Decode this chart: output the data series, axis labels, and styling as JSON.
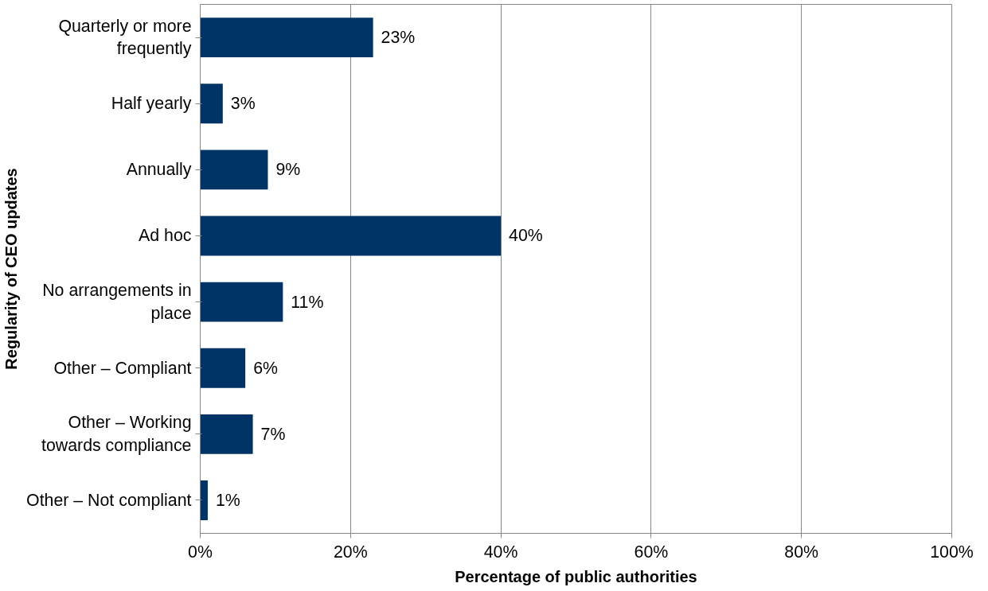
{
  "chart_data": {
    "type": "bar",
    "orientation": "horizontal",
    "xlabel": "Percentage of public authorities",
    "ylabel": "Regularity of CEO updates",
    "categories": [
      "Quarterly or more frequently",
      "Half yearly",
      "Annually",
      "Ad hoc",
      "No arrangements in place",
      "Other – Compliant",
      "Other – Working towards compliance",
      "Other – Not compliant"
    ],
    "values": [
      23,
      3,
      9,
      40,
      11,
      6,
      7,
      1
    ],
    "value_labels": [
      "23%",
      "3%",
      "9%",
      "40%",
      "11%",
      "6%",
      "7%",
      "1%"
    ],
    "color": "#003366",
    "xlim": [
      0,
      100
    ],
    "xticks": [
      {
        "value": 0,
        "label": "0%"
      },
      {
        "value": 20,
        "label": "20%"
      },
      {
        "value": 40,
        "label": "40%"
      },
      {
        "value": 60,
        "label": "60%"
      },
      {
        "value": 80,
        "label": "80%"
      },
      {
        "value": 100,
        "label": "100%"
      }
    ],
    "grid": "x"
  }
}
